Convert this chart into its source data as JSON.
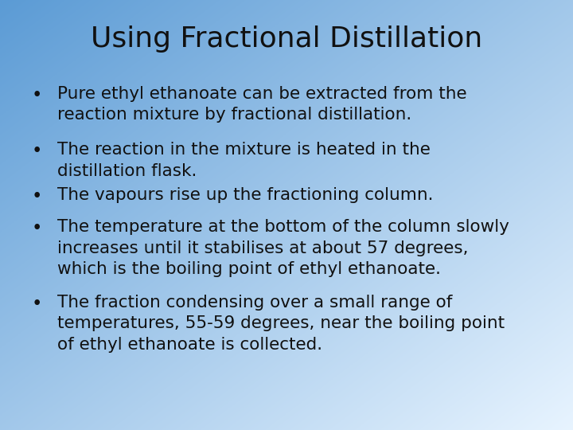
{
  "title": "Using Fractional Distillation",
  "title_fontsize": 26,
  "title_color": "#111111",
  "bullet_fontsize": 15.5,
  "bullet_color": "#111111",
  "bullets": [
    "Pure ethyl ethanoate can be extracted from the\nreaction mixture by fractional distillation.",
    "The reaction in the mixture is heated in the\ndistillation flask.",
    "The vapours rise up the fractioning column.",
    "The temperature at the bottom of the column slowly\nincreases until it stabilises at about 57 degrees,\nwhich is the boiling point of ethyl ethanoate.",
    "The fraction condensing over a small range of\ntemperatures, 55-59 degrees, near the boiling point\nof ethyl ethanoate is collected."
  ],
  "bg_color_topleft": "#5b9bd5",
  "bg_color_bottomright": "#ddeeff",
  "fig_width": 7.2,
  "fig_height": 5.4,
  "dpi": 100
}
